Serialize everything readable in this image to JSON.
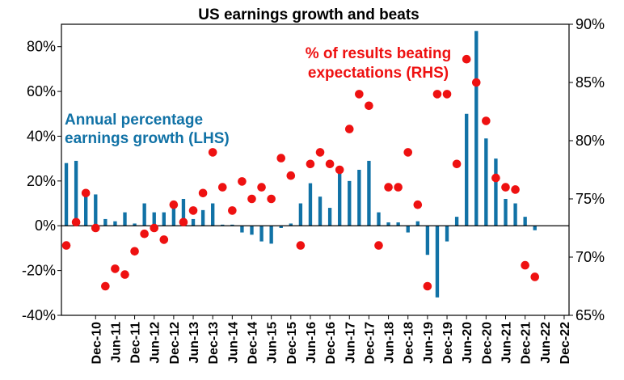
{
  "chart_data": {
    "type": "bar+scatter",
    "title": "US earnings growth and beats",
    "x": [
      "Mar-10",
      "Jun-10",
      "Sep-10",
      "Dec-10",
      "Mar-11",
      "Jun-11",
      "Sep-11",
      "Dec-11",
      "Mar-12",
      "Jun-12",
      "Sep-12",
      "Dec-12",
      "Mar-13",
      "Jun-13",
      "Sep-13",
      "Dec-13",
      "Mar-14",
      "Jun-14",
      "Sep-14",
      "Dec-14",
      "Mar-15",
      "Jun-15",
      "Sep-15",
      "Dec-15",
      "Mar-16",
      "Jun-16",
      "Sep-16",
      "Dec-16",
      "Mar-17",
      "Jun-17",
      "Sep-17",
      "Dec-17",
      "Mar-18",
      "Jun-18",
      "Sep-18",
      "Dec-18",
      "Mar-19",
      "Jun-19",
      "Sep-19",
      "Dec-19",
      "Mar-20",
      "Jun-20",
      "Sep-20",
      "Dec-20",
      "Mar-21",
      "Jun-21",
      "Sep-21",
      "Dec-21",
      "Mar-22",
      "Jun-22",
      "Sep-22",
      "Dec-22"
    ],
    "x_tick_labels": [
      "Dec-10",
      "Jun-11",
      "Dec-11",
      "Jun-12",
      "Dec-12",
      "Jun-13",
      "Dec-13",
      "Jun-14",
      "Dec-14",
      "Jun-15",
      "Dec-15",
      "Jun-16",
      "Dec-16",
      "Jun-17",
      "Dec-17",
      "Jun-18",
      "Dec-18",
      "Jun-19",
      "Dec-19",
      "Jun-20",
      "Dec-20",
      "Jun-21",
      "Dec-21",
      "Jun-22",
      "Dec-22"
    ],
    "series": [
      {
        "name": "Annual percentage earnings growth (LHS)",
        "kind": "bar",
        "axis": "left",
        "color": "#1172a6",
        "values": [
          28,
          29,
          14,
          14,
          3,
          2,
          6,
          1,
          10,
          6,
          6,
          9,
          12,
          3,
          7,
          10,
          0.5,
          0.5,
          -3,
          -4,
          -7,
          -8,
          -1,
          1,
          10,
          19,
          13,
          8,
          25,
          20,
          25,
          29,
          6,
          1.5,
          1.5,
          -3,
          2,
          -13,
          -32,
          -7,
          4,
          50,
          87,
          39,
          30,
          12,
          10,
          4,
          -2,
          null,
          null,
          null
        ]
      },
      {
        "name": "% of results beating expectations (RHS)",
        "kind": "scatter",
        "axis": "right",
        "color": "#ee1111",
        "values": [
          71,
          73,
          75.5,
          72.5,
          67.5,
          69,
          68.5,
          70.5,
          72,
          72.5,
          71.5,
          74.5,
          73,
          74,
          75.5,
          79,
          76,
          74,
          76.5,
          75,
          76,
          75,
          78.5,
          77,
          71,
          78,
          79,
          78,
          77.5,
          81,
          84,
          83,
          71,
          76,
          76,
          79,
          74.5,
          67.5,
          84,
          84,
          78,
          87,
          85,
          81.7,
          76.8,
          76,
          75.8,
          69.3,
          68.3,
          null,
          null,
          null
        ]
      }
    ],
    "yleft": {
      "ticks": [
        "-40%",
        "-20%",
        "0%",
        "20%",
        "40%",
        "60%",
        "80%"
      ],
      "lim": [
        -40,
        90
      ]
    },
    "yright": {
      "ticks": [
        "65%",
        "70%",
        "75%",
        "80%",
        "85%",
        "90%"
      ],
      "lim": [
        65,
        90
      ]
    },
    "annotations": {
      "lhs": [
        "Annual percentage",
        "earnings growth (LHS)"
      ],
      "rhs": [
        "% of results beating",
        "expectations (RHS)"
      ]
    }
  }
}
